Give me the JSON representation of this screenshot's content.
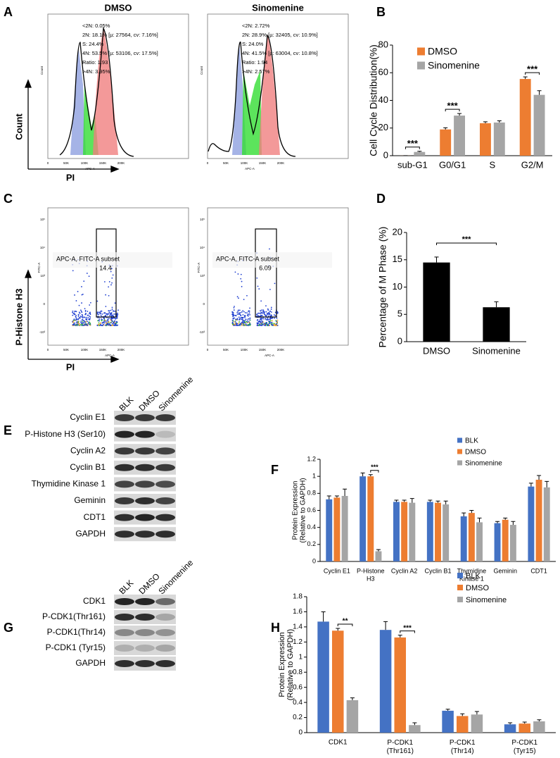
{
  "panel_labels": [
    "A",
    "B",
    "C",
    "D",
    "E",
    "F",
    "G",
    "H"
  ],
  "flow_histograms": {
    "x_label": "PI",
    "y_label": "Count",
    "axis_x_label": "APC-A",
    "axis_y_label": "Count",
    "x_ticks": [
      "0",
      "50K",
      "100K",
      "150K",
      "200K"
    ],
    "plots": [
      {
        "title": "DMSO",
        "stats": [
          "<2N: 0.05%",
          "2N: 18.1% [µ: 27564, cv: 7.16%]",
          "S: 24.4%",
          "4N: 53.5% [µ: 53106, cv: 17.5%]",
          "Ratio: 1.93",
          ">4N: 3.95%"
        ]
      },
      {
        "title": "Sinomenine",
        "stats": [
          "<2N: 2.72%",
          "2N: 28.9% [µ: 32405, cv: 10.9%]",
          "S: 24.0%",
          "4N: 41.5% [µ: 63004, cv: 10.8%]",
          "Ratio: 1.94",
          ">4N: 2.57%"
        ]
      }
    ]
  },
  "flow_dot_plots": {
    "x_label": "PI",
    "y_label": "P-Histone H3",
    "axis_x_label": "APC-A",
    "axis_y_label": "FITC-A",
    "x_ticks": [
      "0",
      "50K",
      "100K",
      "150K",
      "200K"
    ],
    "y_ticks": [
      "10⁵",
      "10⁴",
      "10³",
      "0",
      "-10³"
    ],
    "gate_label": "APC-A, FITC-A subset",
    "plots": [
      {
        "value": 14.4
      },
      {
        "value": 6.09
      }
    ]
  },
  "blots": [
    {
      "columns": [
        "BLK",
        "DMSO",
        "Sinomenine"
      ],
      "rows": [
        "Cyclin E1",
        "P-Histone H3 (Ser10)",
        "Cyclin A2",
        "Cyclin B1",
        "Thymidine Kinase 1",
        "Geminin",
        "CDT1",
        "GAPDH"
      ]
    },
    {
      "columns": [
        "BLK",
        "DMSO",
        "Sinomenine"
      ],
      "rows": [
        "CDK1",
        "P-CDK1(Thr161)",
        "P-CDK1(Thr14)",
        "P-CDK1 (Tyr15)",
        "GAPDH"
      ]
    }
  ],
  "chart_data": [
    {
      "type": "bar",
      "y_label": "Cell Cycle Distribution(%)",
      "categories": [
        "sub-G1",
        "G0/G1",
        "S",
        "G2/M"
      ],
      "legend": "upper left",
      "series": [
        {
          "name": "DMSO",
          "color": "#ed7d31",
          "values": [
            0.05,
            19,
            23.5,
            55.5
          ],
          "errors": [
            0,
            1.2,
            1,
            1.5
          ]
        },
        {
          "name": "Sinomenine",
          "color": "#a5a5a5",
          "values": [
            2.7,
            29,
            24,
            44
          ],
          "errors": [
            0.5,
            1.5,
            1.2,
            3
          ]
        }
      ],
      "significance": [
        "***",
        "***",
        null,
        "***"
      ],
      "ylim": [
        0,
        80
      ],
      "yticks": [
        0,
        20,
        40,
        60,
        80
      ]
    },
    {
      "type": "bar",
      "y_label": "Percentage of M Phase (%)",
      "categories": [
        "DMSO",
        "Sinomenine"
      ],
      "values": [
        14.5,
        6.3
      ],
      "errors": [
        1,
        1
      ],
      "color": "#000000",
      "significance": "***",
      "ylim": [
        0,
        20
      ],
      "yticks": [
        0,
        5,
        10,
        15,
        20
      ]
    },
    {
      "type": "bar",
      "y_label": "Protein Expression\n(Relative to GAPDH)",
      "categories": [
        "Cyclin E1",
        "P-Histone\nH3",
        "Cyclin A2",
        "Cyclin B1",
        "Thymidine\nKinase 1",
        "Geminin",
        "CDT1"
      ],
      "legend": "upper right",
      "series": [
        {
          "name": "BLK",
          "color": "#4472c4",
          "values": [
            0.73,
            1.0,
            0.7,
            0.7,
            0.53,
            0.45,
            0.88
          ],
          "errors": [
            0.04,
            0.04,
            0.02,
            0.02,
            0.04,
            0.02,
            0.04
          ]
        },
        {
          "name": "DMSO",
          "color": "#ed7d31",
          "values": [
            0.75,
            1.0,
            0.7,
            0.69,
            0.57,
            0.49,
            0.96
          ],
          "errors": [
            0.02,
            0.02,
            0.02,
            0.02,
            0.03,
            0.02,
            0.05
          ]
        },
        {
          "name": "Sinomenine",
          "color": "#a5a5a5",
          "values": [
            0.77,
            0.12,
            0.69,
            0.67,
            0.46,
            0.43,
            0.87
          ],
          "errors": [
            0.08,
            0.02,
            0.05,
            0.04,
            0.05,
            0.04,
            0.07
          ]
        }
      ],
      "significance": [
        null,
        "***",
        null,
        null,
        null,
        null,
        null
      ],
      "ylim": [
        0,
        1.2
      ],
      "yticks": [
        0,
        0.2,
        0.4,
        0.6,
        0.8,
        1,
        1.2
      ]
    },
    {
      "type": "bar",
      "y_label": "Protein Expression\n(Relative to GAPDH)",
      "categories": [
        "CDK1",
        "P-CDK1\n(Thr161)",
        "P-CDK1\n(Thr14)",
        "P-CDK1\n(Tyr15)"
      ],
      "legend": "upper right",
      "series": [
        {
          "name": "BLK",
          "color": "#4472c4",
          "values": [
            1.47,
            1.36,
            0.29,
            0.11
          ],
          "errors": [
            0.13,
            0.11,
            0.02,
            0.02
          ]
        },
        {
          "name": "DMSO",
          "color": "#ed7d31",
          "values": [
            1.35,
            1.26,
            0.22,
            0.12
          ],
          "errors": [
            0.03,
            0.03,
            0.03,
            0.02
          ]
        },
        {
          "name": "Sinomenine",
          "color": "#a5a5a5",
          "values": [
            0.43,
            0.1,
            0.24,
            0.15
          ],
          "errors": [
            0.03,
            0.03,
            0.04,
            0.02
          ]
        }
      ],
      "significance": [
        "**",
        "***",
        null,
        null
      ],
      "ylim": [
        0,
        1.8
      ],
      "yticks": [
        0,
        0.2,
        0.4,
        0.6,
        0.8,
        1,
        1.2,
        1.4,
        1.6,
        1.8
      ]
    }
  ]
}
